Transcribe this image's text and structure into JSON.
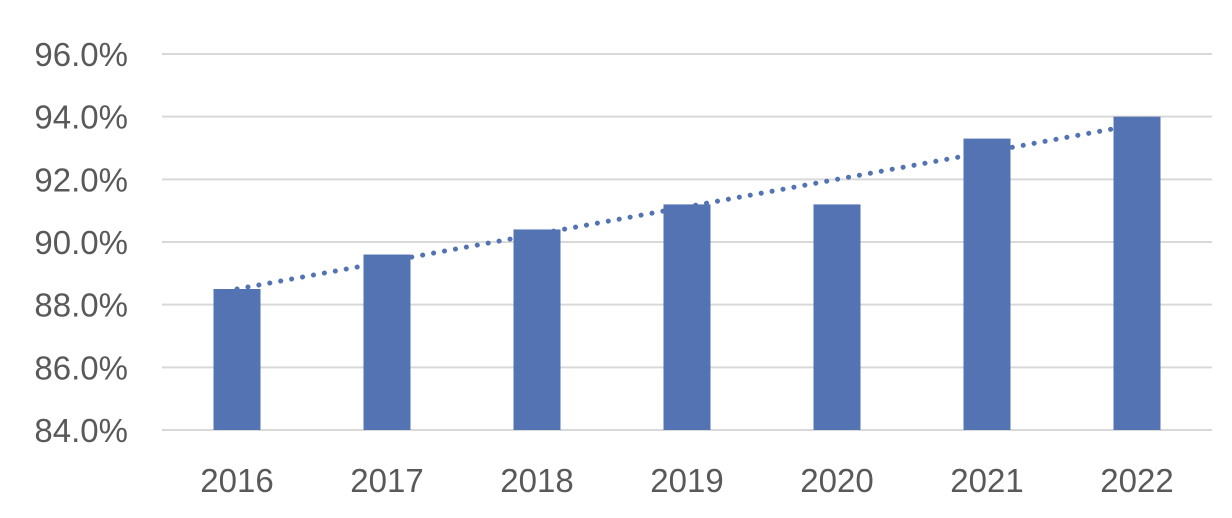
{
  "chart_data": {
    "type": "bar",
    "title": "",
    "xlabel": "",
    "ylabel": "",
    "categories": [
      "2016",
      "2017",
      "2018",
      "2019",
      "2020",
      "2021",
      "2022"
    ],
    "series": [
      {
        "values": [
          88.5,
          89.6,
          90.4,
          91.2,
          91.2,
          93.3,
          94.0
        ],
        "color": "#5473b3"
      }
    ],
    "trendline": {
      "type": "linear",
      "style": "dotted",
      "start": 88.5,
      "end": 93.75,
      "color": "#5473b3"
    },
    "ylim": [
      84.0,
      96.0
    ],
    "yticks": [
      "84.0%",
      "86.0%",
      "88.0%",
      "90.0%",
      "92.0%",
      "94.0%",
      "96.0%"
    ],
    "ytick_values": [
      84,
      86,
      88,
      90,
      92,
      94,
      96
    ],
    "grid": true,
    "gridline_color": "#d9d9d9",
    "legend": "none"
  }
}
